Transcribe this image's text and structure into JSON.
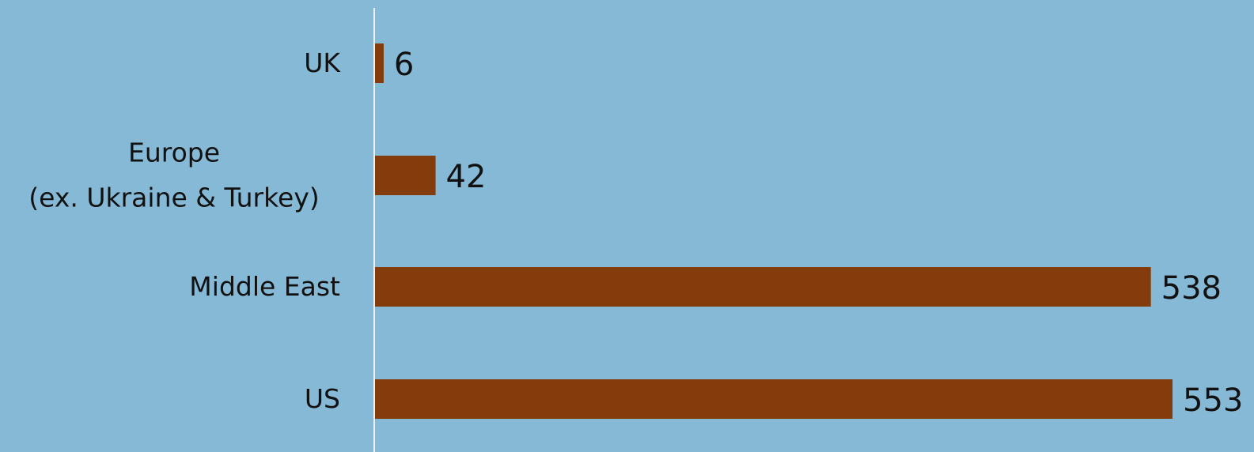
{
  "chart_data": {
    "type": "bar",
    "orientation": "horizontal",
    "categories": [
      "UK",
      "Europe\n(ex. Ukraine & Turkey)",
      "Middle East",
      "US"
    ],
    "values": [
      6,
      42,
      538,
      553
    ],
    "data_labels": [
      "6",
      "42",
      "538",
      "553"
    ],
    "grid": false,
    "legend": "none",
    "colors": {
      "bar": "#843c0c",
      "background": "#86b9d6",
      "axis": "#e8f2f8"
    }
  }
}
